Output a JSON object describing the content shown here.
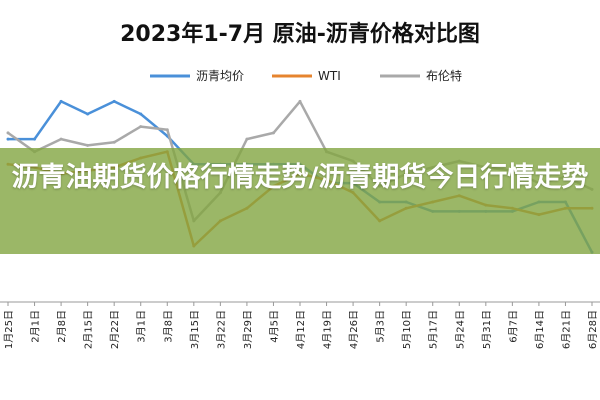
{
  "banner": {
    "headline": "沥青油期货价格行情走势/沥青期货今日行情走势"
  },
  "chart_data": {
    "type": "line",
    "title": "2023年1-7月 原油-沥青价格对比图",
    "legend_position": "top-center",
    "grid": false,
    "x": [
      "1月25日",
      "2月1日",
      "2月8日",
      "2月15日",
      "2月22日",
      "3月1日",
      "3月8日",
      "3月15日",
      "3月22日",
      "3月29日",
      "4月5日",
      "4月12日",
      "4月19日",
      "4月26日",
      "5月3日",
      "5月10日",
      "5月17日",
      "5月24日",
      "5月31日",
      "6月7日",
      "6月14日",
      "6月21日",
      "6月28日"
    ],
    "series": [
      {
        "name": "沥青均价",
        "color": "#4a90d9",
        "values": [
          108,
          108,
          120,
          116,
          120,
          116,
          109,
          100,
          100,
          100,
          100,
          100,
          94,
          94,
          88,
          88,
          85,
          85,
          85,
          85,
          88,
          88,
          72
        ]
      },
      {
        "name": "WTI",
        "color": "#e6842f",
        "values": [
          100,
          99,
          97,
          98,
          99,
          102,
          104,
          74,
          82,
          86,
          93,
          97,
          95,
          91,
          82,
          86,
          88,
          90,
          87,
          86,
          84,
          86,
          86
        ]
      },
      {
        "name": "布伦特",
        "color": "#a9a9a9",
        "values": [
          110,
          104,
          108,
          106,
          107,
          112,
          111,
          82,
          91,
          108,
          110,
          120,
          104,
          101,
          93,
          97,
          99,
          101,
          99,
          98,
          94,
          96,
          92
        ]
      }
    ],
    "ylim": [
      60,
      130
    ]
  }
}
